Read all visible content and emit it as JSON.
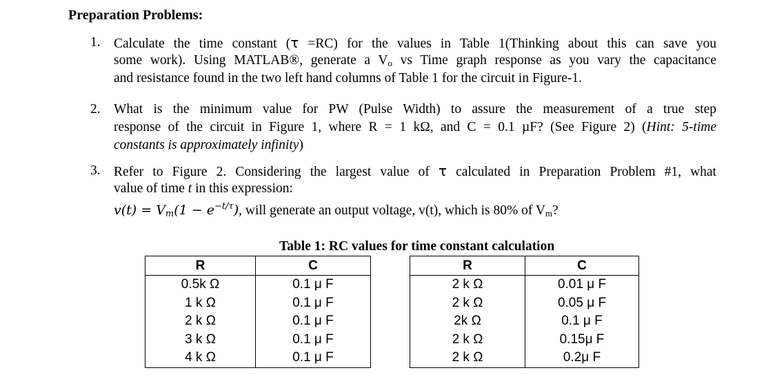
{
  "heading": "Preparation Problems:",
  "problems": [
    {
      "number": "1.",
      "line1_a": "Calculate the time constant (",
      "line1_tau": "τ",
      "line1_b": " =RC) for the values in Table 1(Thinking about this can save you",
      "line2_a": "some work). Using MATLAB®, generate a V",
      "line2_sub": "o",
      "line2_b": " vs Time graph response as you vary the capacitance",
      "line3": "and resistance found in the two left hand columns of Table 1 for the circuit in Figure-1."
    },
    {
      "number": "2.",
      "line1": "What is the minimum value for PW (Pulse Width) to assure the measurement of a true step",
      "line2_a": "response of the circuit in Figure 1, where R = 1 kΩ, and C = 0.1 µF? (See Figure 2) (",
      "line2_hint": "Hint: 5-time",
      "line2_b": "",
      "line3_hint": "constants is approximately infinity",
      "line3_close": ")"
    },
    {
      "number": "3.",
      "line1_a": "Refer to Figure 2. Considering the largest value of ",
      "line1_tau": "τ",
      "line1_b": " calculated in Preparation Problem #1, what",
      "line2_a": "value of time ",
      "line2_t": "t",
      "line2_b": " in this expression:",
      "eq_lhs": "v(t) = V",
      "eq_sub": "m",
      "eq_paren": "(1 − e",
      "eq_exp": "−t/τ",
      "eq_close": ")",
      "line3_rest": ", will generate an output voltage, v(t), which is 80% of V",
      "line3_sub": "m",
      "line3_end": "?"
    }
  ],
  "table": {
    "caption": "Table 1: RC values for time constant calculation",
    "left": {
      "headers": [
        "R",
        "C"
      ],
      "rows": [
        [
          "0.5k Ω",
          "0.1 μ F"
        ],
        [
          "1 k Ω",
          "0.1 μ F"
        ],
        [
          "2 k Ω",
          "0.1 μ F"
        ],
        [
          "3 k Ω",
          "0.1 μ F"
        ],
        [
          "4 k Ω",
          "0.1 μ F"
        ]
      ]
    },
    "right": {
      "headers": [
        "R",
        "C"
      ],
      "rows": [
        [
          "2 k Ω",
          "0.01 μ F"
        ],
        [
          "2 k Ω",
          "0.05 μ F"
        ],
        [
          "2k Ω",
          "0.1 μ F"
        ],
        [
          "2 k Ω",
          "0.15μ F"
        ],
        [
          "2 k Ω",
          "0.2μ F"
        ]
      ]
    }
  }
}
